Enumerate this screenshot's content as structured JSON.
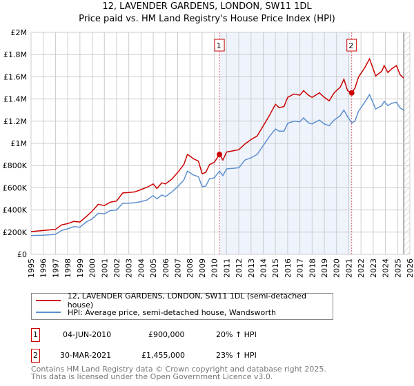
{
  "title": "12, LAVENDER GARDENS, LONDON, SW11 1DL",
  "subtitle": "Price paid vs. HM Land Registry's House Price Index (HPI)",
  "colors": {
    "property": "#cc0000",
    "hpi": "#5b8fd0",
    "shade": "#eef3fc",
    "grid": "#cccccc"
  },
  "chart_data": {
    "type": "line",
    "title": "12, LAVENDER GARDENS, LONDON, SW11 1DL — Price paid vs. HM Land Registry's House Price Index (HPI)",
    "xlim": [
      1995,
      2026
    ],
    "ylim": [
      0,
      2000000
    ],
    "x_ticks": [
      "1995",
      "1996",
      "1997",
      "1998",
      "1999",
      "2000",
      "2001",
      "2002",
      "2003",
      "2004",
      "2005",
      "2006",
      "2007",
      "2008",
      "2009",
      "2010",
      "2011",
      "2012",
      "2013",
      "2014",
      "2015",
      "2016",
      "2017",
      "2018",
      "2019",
      "2020",
      "2021",
      "2022",
      "2023",
      "2024",
      "2025",
      "2026"
    ],
    "y_ticks": [
      {
        "v": 0,
        "label": "£0"
      },
      {
        "v": 200000,
        "label": "£200K"
      },
      {
        "v": 400000,
        "label": "£400K"
      },
      {
        "v": 600000,
        "label": "£600K"
      },
      {
        "v": 800000,
        "label": "£800K"
      },
      {
        "v": 1000000,
        "label": "£1M"
      },
      {
        "v": 1200000,
        "label": "£1.2M"
      },
      {
        "v": 1400000,
        "label": "£1.4M"
      },
      {
        "v": 1600000,
        "label": "£1.6M"
      },
      {
        "v": 1800000,
        "label": "£1.8M"
      },
      {
        "v": 2000000,
        "label": "£2M"
      }
    ],
    "grid": true,
    "x": [
      1995,
      1996,
      1997,
      1997.5,
      1998,
      1998.5,
      1999,
      1999.5,
      2000,
      2000.5,
      2001,
      2001.5,
      2002,
      2002.5,
      2003,
      2003.5,
      2004,
      2004.5,
      2005,
      2005.3,
      2005.7,
      2006,
      2006.5,
      2007,
      2007.5,
      2007.8,
      2008.3,
      2008.7,
      2009,
      2009.3,
      2009.6,
      2010,
      2010.42,
      2010.7,
      2011,
      2011.5,
      2012,
      2012.5,
      2013,
      2013.5,
      2014,
      2014.5,
      2015,
      2015.3,
      2015.7,
      2016,
      2016.5,
      2017,
      2017.3,
      2017.7,
      2018,
      2018.6,
      2019,
      2019.4,
      2019.8,
      2020.3,
      2020.6,
      2020.9,
      2021.25,
      2021.5,
      2021.8,
      2022.3,
      2022.7,
      2023.2,
      2023.7,
      2023.9,
      2024.2,
      2024.5,
      2024.9,
      2025.2,
      2025.5
    ],
    "series": [
      {
        "name": "12, LAVENDER GARDENS, LONDON, SW11 1DL (semi-detached house)",
        "values": [
          205000,
          215000,
          225000,
          266000,
          277000,
          297000,
          291000,
          338000,
          389000,
          451000,
          440000,
          471000,
          481000,
          553000,
          557000,
          563000,
          584000,
          605000,
          635000,
          594000,
          645000,
          635000,
          676000,
          738000,
          809000,
          902000,
          861000,
          840000,
          727000,
          738000,
          809000,
          830000,
          900000,
          850000,
          922000,
          932000,
          943000,
          994000,
          1035000,
          1066000,
          1158000,
          1250000,
          1352000,
          1322000,
          1332000,
          1414000,
          1445000,
          1434000,
          1475000,
          1434000,
          1414000,
          1455000,
          1414000,
          1383000,
          1455000,
          1506000,
          1578000,
          1475000,
          1455000,
          1496000,
          1598000,
          1680000,
          1762000,
          1608000,
          1650000,
          1701000,
          1639000,
          1670000,
          1701000,
          1619000,
          1588000
        ]
      },
      {
        "name": "HPI: Average price, semi-detached house, Wandsworth",
        "values": [
          170000,
          172000,
          180000,
          215000,
          230000,
          250000,
          245000,
          290000,
          320000,
          370000,
          365000,
          395000,
          400000,
          460000,
          460000,
          465000,
          475000,
          490000,
          530000,
          500000,
          535000,
          520000,
          560000,
          610000,
          670000,
          750000,
          715000,
          700000,
          610000,
          615000,
          680000,
          690000,
          750000,
          710000,
          770000,
          775000,
          780000,
          850000,
          870000,
          900000,
          980000,
          1060000,
          1130000,
          1110000,
          1110000,
          1180000,
          1200000,
          1195000,
          1230000,
          1185000,
          1175000,
          1210000,
          1175000,
          1160000,
          1210000,
          1250000,
          1300000,
          1240000,
          1185000,
          1200000,
          1290000,
          1370000,
          1440000,
          1310000,
          1340000,
          1380000,
          1340000,
          1360000,
          1370000,
          1320000,
          1300000
        ]
      }
    ],
    "sales": [
      {
        "label": "1",
        "x": 2010.42,
        "y": 900000,
        "date": "04-JUN-2010",
        "price": "£900,000",
        "hpi": "20% ↑ HPI"
      },
      {
        "label": "2",
        "x": 2021.24,
        "y": 1455000,
        "date": "30-MAR-2021",
        "price": "£1,455,000",
        "hpi": "23% ↑ HPI"
      }
    ],
    "future_hatch_from": 2025.5,
    "legend_position": "below"
  },
  "footer": [
    "Contains HM Land Registry data © Crown copyright and database right 2025.",
    "This data is licensed under the Open Government Licence v3.0."
  ]
}
